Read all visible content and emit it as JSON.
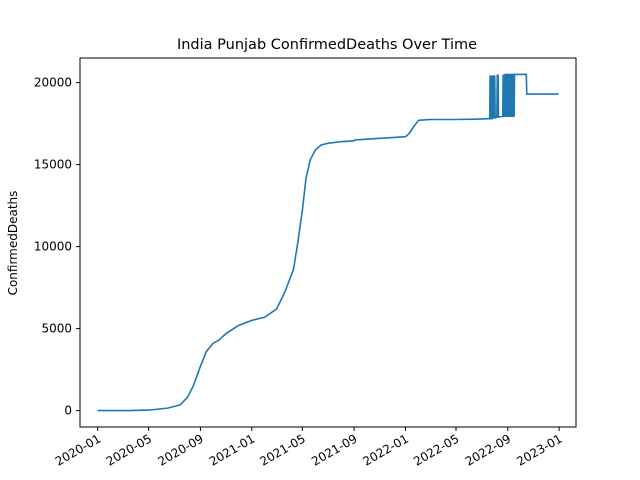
{
  "chart_data": {
    "type": "line",
    "title": "India Punjab ConfirmedDeaths Over Time",
    "xlabel": "",
    "ylabel": "ConfirmedDeaths",
    "x_ticks": [
      "2020-01",
      "2020-05",
      "2020-09",
      "2021-01",
      "2021-05",
      "2021-09",
      "2022-01",
      "2022-05",
      "2022-09",
      "2023-01"
    ],
    "y_ticks": [
      0,
      5000,
      10000,
      15000,
      20000
    ],
    "xlim": [
      "2019-11-20",
      "2023-02-10"
    ],
    "ylim": [
      -1000,
      21500
    ],
    "grid": false,
    "color": "#1f77b4",
    "series": [
      {
        "x": [
          "2020-01-01",
          "2020-03-15",
          "2020-05-01",
          "2020-06-15",
          "2020-07-15",
          "2020-08-01",
          "2020-08-15",
          "2020-09-01",
          "2020-09-15",
          "2020-10-01",
          "2020-10-15",
          "2020-11-01",
          "2020-12-01",
          "2021-01-01",
          "2021-02-01",
          "2021-03-01",
          "2021-03-20",
          "2021-04-10",
          "2021-04-20",
          "2021-05-01",
          "2021-05-10",
          "2021-05-20",
          "2021-06-01",
          "2021-06-15",
          "2021-07-01",
          "2021-08-01",
          "2021-09-01",
          "2021-09-02",
          "2021-10-01",
          "2021-11-01",
          "2021-12-01",
          "2022-01-01",
          "2022-01-10",
          "2022-01-20",
          "2022-02-01",
          "2022-03-01",
          "2022-05-01",
          "2022-06-15",
          "2022-07-20",
          "2022-07-21",
          "2022-07-22",
          "2022-07-23",
          "2022-07-24",
          "2022-07-25",
          "2022-07-26",
          "2022-07-27",
          "2022-07-28",
          "2022-07-30",
          "2022-07-31",
          "2022-08-01",
          "2022-08-02",
          "2022-08-03",
          "2022-08-06",
          "2022-08-07",
          "2022-08-08",
          "2022-08-09",
          "2022-08-10",
          "2022-08-20",
          "2022-08-21",
          "2022-08-22",
          "2022-08-23",
          "2022-08-25",
          "2022-08-26",
          "2022-08-27",
          "2022-08-28",
          "2022-08-29",
          "2022-08-30",
          "2022-08-31",
          "2022-09-01",
          "2022-09-02",
          "2022-09-03",
          "2022-09-04",
          "2022-09-05",
          "2022-09-06",
          "2022-09-07",
          "2022-09-08",
          "2022-09-09",
          "2022-09-10",
          "2022-09-11",
          "2022-09-12",
          "2022-09-13",
          "2022-09-14",
          "2022-09-15",
          "2022-09-16",
          "2022-09-17",
          "2022-09-18",
          "2022-10-15",
          "2022-10-16",
          "2022-12-31"
        ],
        "y": [
          0,
          0,
          30,
          150,
          350,
          800,
          1500,
          2700,
          3600,
          4100,
          4300,
          4700,
          5200,
          5500,
          5700,
          6200,
          7200,
          8600,
          10200,
          12200,
          14200,
          15300,
          15900,
          16200,
          16300,
          16400,
          16450,
          16500,
          16550,
          16600,
          16650,
          16700,
          16900,
          17300,
          17700,
          17750,
          17750,
          17770,
          17800,
          20400,
          17800,
          20400,
          17800,
          20350,
          17800,
          20400,
          17850,
          20400,
          17850,
          20400,
          17850,
          17850,
          17900,
          20450,
          17900,
          20450,
          17900,
          17950,
          20450,
          17950,
          20450,
          17950,
          20500,
          17950,
          20500,
          17950,
          20500,
          17950,
          20500,
          17950,
          20500,
          17950,
          20500,
          17950,
          20500,
          17950,
          20500,
          17950,
          20500,
          17950,
          20500,
          17950,
          20500,
          17950,
          20500,
          20500,
          20500,
          19300,
          19300
        ]
      }
    ]
  }
}
